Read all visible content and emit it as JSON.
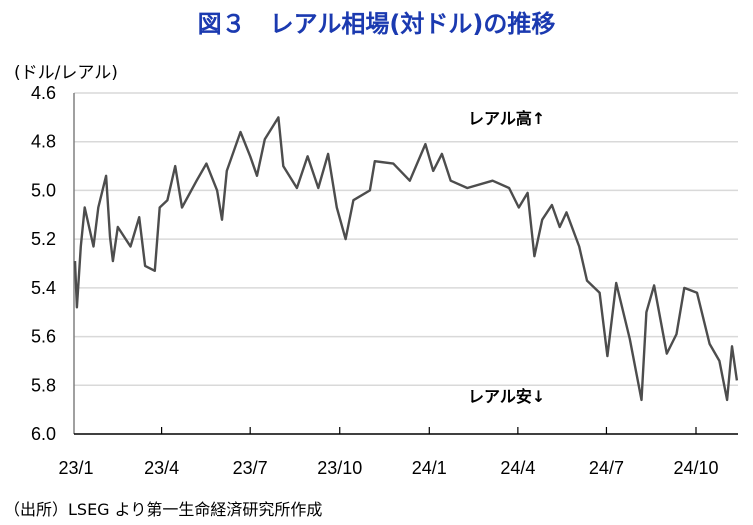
{
  "chart_data": {
    "type": "line",
    "title": "図３　レアル相場(対ドル)の推移",
    "ylabel": "(ドル/レアル)",
    "xlabel": "",
    "source": "（出所）LSEG より第一生命経済研究所作成",
    "ylim": [
      4.6,
      6.0
    ],
    "y_inverted": true,
    "yticks": [
      "4.6",
      "4.8",
      "5.0",
      "5.2",
      "5.4",
      "5.6",
      "5.8",
      "6.0"
    ],
    "xticks": [
      {
        "label": "23/1",
        "date": "2023-01-01"
      },
      {
        "label": "23/4",
        "date": "2023-04-01"
      },
      {
        "label": "23/7",
        "date": "2023-07-01"
      },
      {
        "label": "23/10",
        "date": "2023-10-01"
      },
      {
        "label": "24/1",
        "date": "2024-01-01"
      },
      {
        "label": "24/4",
        "date": "2024-04-01"
      },
      {
        "label": "24/7",
        "date": "2024-07-01"
      },
      {
        "label": "24/10",
        "date": "2024-10-01"
      }
    ],
    "xlim": [
      "2023-01-01",
      "2024-11-14"
    ],
    "grid": true,
    "line_color": "#4d4d4d",
    "annotations": [
      "レアル高↑",
      "レアル安↓"
    ],
    "series": [
      {
        "x": [
          "2023-01-02",
          "2023-01-04",
          "2023-01-08",
          "2023-01-12",
          "2023-01-21",
          "2023-01-26",
          "2023-02-03",
          "2023-02-07",
          "2023-02-10",
          "2023-02-15",
          "2023-02-28",
          "2023-03-09",
          "2023-03-15",
          "2023-03-25",
          "2023-03-30",
          "2023-04-07",
          "2023-04-15",
          "2023-04-22",
          "2023-05-07",
          "2023-05-17",
          "2023-05-28",
          "2023-06-02",
          "2023-06-07",
          "2023-06-21",
          "2023-07-01",
          "2023-07-08",
          "2023-07-16",
          "2023-07-30",
          "2023-08-04",
          "2023-08-18",
          "2023-08-29",
          "2023-09-09",
          "2023-09-19",
          "2023-09-28",
          "2023-10-07",
          "2023-10-15",
          "2023-11-01",
          "2023-11-06",
          "2023-11-25",
          "2023-12-12",
          "2023-12-28",
          "2024-01-05",
          "2024-01-14",
          "2024-01-23",
          "2024-02-09",
          "2024-03-06",
          "2024-03-23",
          "2024-04-02",
          "2024-04-11",
          "2024-04-18",
          "2024-04-26",
          "2024-05-06",
          "2024-05-14",
          "2024-05-21",
          "2024-06-03",
          "2024-06-11",
          "2024-06-24",
          "2024-07-02",
          "2024-07-11",
          "2024-07-25",
          "2024-08-06",
          "2024-08-11",
          "2024-08-19",
          "2024-09-01",
          "2024-09-11",
          "2024-09-19",
          "2024-10-02",
          "2024-10-15",
          "2024-10-25",
          "2024-11-02",
          "2024-11-07",
          "2024-11-12"
        ],
        "y": [
          5.29,
          5.48,
          5.23,
          5.07,
          5.23,
          5.07,
          4.94,
          5.19,
          5.29,
          5.15,
          5.23,
          5.11,
          5.31,
          5.33,
          5.07,
          5.04,
          4.9,
          5.07,
          4.96,
          4.89,
          5.0,
          5.12,
          4.92,
          4.76,
          4.86,
          4.94,
          4.79,
          4.7,
          4.9,
          4.99,
          4.86,
          4.99,
          4.85,
          5.07,
          5.2,
          5.04,
          5.0,
          4.88,
          4.89,
          4.96,
          4.81,
          4.92,
          4.85,
          4.96,
          4.99,
          4.96,
          4.99,
          5.07,
          5.01,
          5.27,
          5.12,
          5.06,
          5.15,
          5.09,
          5.23,
          5.37,
          5.42,
          5.68,
          5.38,
          5.61,
          5.86,
          5.5,
          5.39,
          5.67,
          5.59,
          5.4,
          5.42,
          5.63,
          5.7,
          5.86,
          5.64,
          5.78
        ]
      }
    ]
  }
}
